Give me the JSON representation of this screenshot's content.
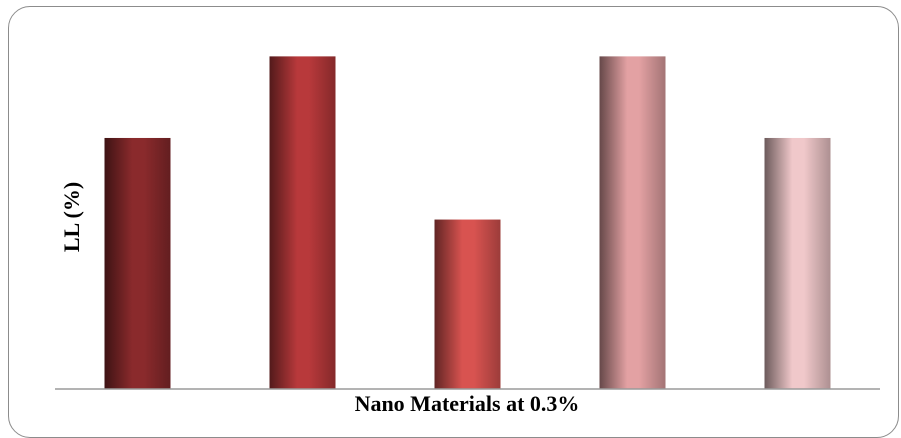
{
  "chart_data": {
    "type": "bar",
    "categories": [
      "",
      "",
      "",
      "",
      ""
    ],
    "values": [
      40,
      53,
      27,
      53,
      40
    ],
    "ylim": [
      0,
      58
    ],
    "xlabel": "Nano Materials at 0.3%",
    "ylabel": "LL (%)",
    "grid": false,
    "legend": "none",
    "colors": [
      "#8a2a2c",
      "#b8393b",
      "#d85350",
      "#e3a1a3",
      "#f0c8ca"
    ]
  }
}
